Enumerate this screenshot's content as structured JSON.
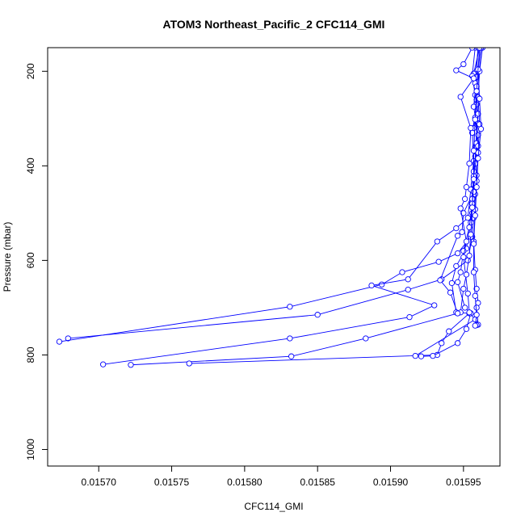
{
  "chart_data": {
    "type": "line",
    "title": "ATOM3 Northeast_Pacific_2 CFC114_GMI",
    "xlabel": "CFC114_GMI",
    "ylabel": "Pressure (mbar)",
    "xlim": [
      0.015665,
      0.015975
    ],
    "ylim": [
      1035,
      150
    ],
    "y_inverted": true,
    "x_ticks": [
      0.0157,
      0.01575,
      0.0158,
      0.01585,
      0.0159,
      0.01595
    ],
    "x_tick_labels": [
      "0.01570",
      "0.01575",
      "0.01580",
      "0.01585",
      "0.01590",
      "0.01595"
    ],
    "y_ticks": [
      200,
      400,
      600,
      800,
      1000
    ],
    "y_tick_labels": [
      "200",
      "400",
      "600",
      "800",
      "1000"
    ],
    "grid": false,
    "legend": "none",
    "color": "#0000ff",
    "marker": "open-circle",
    "series": [
      {
        "values": [
          [
            0.01596,
            150
          ],
          [
            0.015959,
            200
          ],
          [
            0.015958,
            250
          ],
          [
            0.01596,
            310
          ],
          [
            0.015958,
            360
          ],
          [
            0.015959,
            420
          ],
          [
            0.015958,
            460
          ],
          [
            0.015957,
            510
          ],
          [
            0.015956,
            550
          ],
          [
            0.015953,
            600
          ],
          [
            0.015935,
            640
          ],
          [
            0.015912,
            662
          ],
          [
            0.01585,
            715
          ],
          [
            0.015679,
            765
          ]
        ]
      },
      {
        "values": [
          [
            0.015961,
            150
          ],
          [
            0.015957,
            205
          ],
          [
            0.015959,
            260
          ],
          [
            0.015957,
            320
          ],
          [
            0.015958,
            380
          ],
          [
            0.015957,
            440
          ],
          [
            0.015956,
            500
          ],
          [
            0.015955,
            550
          ],
          [
            0.015946,
            585
          ],
          [
            0.015933,
            603
          ],
          [
            0.015908,
            625
          ],
          [
            0.015894,
            651
          ],
          [
            0.015831,
            698
          ],
          [
            0.015673,
            772
          ]
        ]
      },
      {
        "values": [
          [
            0.015958,
            150
          ],
          [
            0.015956,
            210
          ],
          [
            0.015959,
            270
          ],
          [
            0.015956,
            330
          ],
          [
            0.015957,
            390
          ],
          [
            0.015955,
            450
          ],
          [
            0.015953,
            510
          ],
          [
            0.015945,
            532
          ],
          [
            0.015932,
            560
          ],
          [
            0.015912,
            640
          ],
          [
            0.015887,
            653
          ],
          [
            0.01593,
            695
          ],
          [
            0.015913,
            720
          ],
          [
            0.015831,
            765
          ],
          [
            0.015703,
            820
          ]
        ]
      },
      {
        "values": [
          [
            0.015962,
            150
          ],
          [
            0.015959,
            212
          ],
          [
            0.015957,
            275
          ],
          [
            0.01596,
            335
          ],
          [
            0.015958,
            395
          ],
          [
            0.015957,
            455
          ],
          [
            0.01595,
            500
          ],
          [
            0.015949,
            540
          ],
          [
            0.015946,
            548
          ],
          [
            0.015934,
            642
          ],
          [
            0.015941,
            668
          ],
          [
            0.015946,
            712
          ],
          [
            0.015883,
            765
          ],
          [
            0.015832,
            803
          ],
          [
            0.015722,
            821
          ]
        ]
      },
      {
        "values": [
          [
            0.01596,
            150
          ],
          [
            0.015958,
            225
          ],
          [
            0.01596,
            290
          ],
          [
            0.015959,
            352
          ],
          [
            0.015957,
            412
          ],
          [
            0.015956,
            470
          ],
          [
            0.015955,
            520
          ],
          [
            0.015952,
            575
          ],
          [
            0.015945,
            612
          ],
          [
            0.015942,
            648
          ],
          [
            0.015945,
            710
          ],
          [
            0.015954,
            712
          ],
          [
            0.01594,
            750
          ],
          [
            0.015935,
            775
          ],
          [
            0.015932,
            800
          ],
          [
            0.015762,
            818
          ]
        ]
      },
      {
        "values": [
          [
            0.015963,
            150
          ],
          [
            0.015959,
            232
          ],
          [
            0.015958,
            298
          ],
          [
            0.01596,
            358
          ],
          [
            0.015957,
            422
          ],
          [
            0.015956,
            480
          ],
          [
            0.015954,
            530
          ],
          [
            0.01595,
            580
          ],
          [
            0.015948,
            625
          ],
          [
            0.015946,
            646
          ],
          [
            0.015951,
            700
          ],
          [
            0.015955,
            712
          ],
          [
            0.015952,
            745
          ],
          [
            0.015946,
            775
          ],
          [
            0.015929,
            802
          ],
          [
            0.015921,
            803
          ]
        ]
      },
      {
        "values": [
          [
            0.015956,
            150
          ],
          [
            0.01595,
            185
          ],
          [
            0.015945,
            198
          ],
          [
            0.015957,
            215
          ],
          [
            0.015948,
            254
          ],
          [
            0.015955,
            320
          ],
          [
            0.015954,
            395
          ],
          [
            0.015952,
            445
          ],
          [
            0.015951,
            470
          ],
          [
            0.015948,
            490
          ],
          [
            0.015952,
            560
          ],
          [
            0.01595,
            593
          ],
          [
            0.015953,
            670
          ],
          [
            0.015954,
            710
          ],
          [
            0.015958,
            725
          ],
          [
            0.015917,
            802
          ]
        ]
      },
      {
        "values": [
          [
            0.015963,
            150
          ],
          [
            0.015961,
            200
          ],
          [
            0.01596,
            255
          ],
          [
            0.015961,
            312
          ],
          [
            0.01596,
            372
          ],
          [
            0.015959,
            432
          ],
          [
            0.015958,
            492
          ],
          [
            0.015957,
            560
          ],
          [
            0.015958,
            620
          ],
          [
            0.015959,
            660
          ],
          [
            0.01596,
            690
          ],
          [
            0.015959,
            700
          ],
          [
            0.01596,
            736
          ],
          [
            0.015959,
            737
          ]
        ]
      },
      {
        "values": [
          [
            0.015962,
            150
          ],
          [
            0.01596,
            196
          ],
          [
            0.015961,
            258
          ],
          [
            0.015962,
            322
          ],
          [
            0.01596,
            384
          ],
          [
            0.015959,
            445
          ],
          [
            0.015958,
            505
          ],
          [
            0.015957,
            565
          ],
          [
            0.015957,
            625
          ],
          [
            0.015958,
            675
          ],
          [
            0.015959,
            715
          ],
          [
            0.015958,
            738
          ]
        ]
      },
      {
        "values": [
          [
            0.015961,
            150
          ],
          [
            0.015959,
            242
          ],
          [
            0.015958,
            302
          ],
          [
            0.015957,
            368
          ],
          [
            0.015957,
            428
          ],
          [
            0.015956,
            488
          ],
          [
            0.015955,
            545
          ],
          [
            0.015954,
            590
          ],
          [
            0.015952,
            630
          ],
          [
            0.01595,
            660
          ],
          [
            0.015948,
            710
          ],
          [
            0.015946,
            712
          ]
        ]
      }
    ]
  }
}
